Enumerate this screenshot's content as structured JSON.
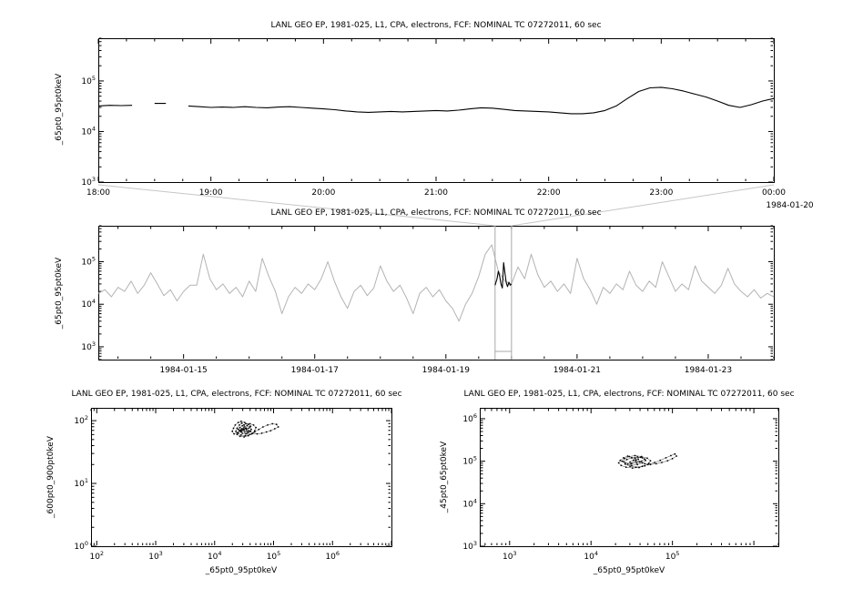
{
  "colors": {
    "background": "#ffffff",
    "foreground": "#000000",
    "series": "#000000",
    "context_line": "#b3b3b3",
    "highlight": "#000000",
    "selection": "#a8a8a8",
    "connector": "#c6c6c6"
  },
  "chart_data": [
    {
      "id": "top-timeseries",
      "type": "line",
      "title": "LANL GEO EP, 1981-025, L1, CPA, electrons, FCF: NOMINAL TC 07272011, 60 sec",
      "ylabel": "_65pt0_95pt0keV",
      "xlabel": "",
      "x_axis_date_label": "1984-01-20",
      "xscale": "time",
      "yscale": "log",
      "xlim_hours": [
        18,
        24
      ],
      "x_tick_hours": [
        18,
        19,
        20,
        21,
        22,
        23,
        24
      ],
      "x_tick_labels": [
        "18:00",
        "19:00",
        "20:00",
        "21:00",
        "22:00",
        "23:00",
        "00:00"
      ],
      "x_minor_step_hours": 0.25,
      "y_tick_exponents": [
        3,
        4,
        5
      ],
      "ylim": [
        1000,
        700000
      ],
      "grid": false,
      "x_start_hour": 18.0,
      "x_step_hour": 0.1,
      "values": [
        32000,
        33000,
        32500,
        33000,
        null,
        36000,
        36000,
        null,
        32000,
        31000,
        30000,
        30500,
        30000,
        31000,
        30000,
        29500,
        30500,
        31000,
        30000,
        29000,
        28000,
        27000,
        25500,
        24500,
        24000,
        24500,
        25000,
        24500,
        25000,
        25500,
        26000,
        25500,
        26500,
        28000,
        29500,
        29000,
        27500,
        26000,
        25500,
        25000,
        24500,
        23500,
        22500,
        22500,
        23500,
        26000,
        32000,
        45000,
        62000,
        73000,
        75000,
        70000,
        63000,
        55000,
        48000,
        40000,
        33000,
        30000,
        34000,
        40000,
        45000
      ]
    },
    {
      "id": "context-timeseries",
      "type": "line",
      "role": "context-overview",
      "title": "LANL GEO EP, 1981-025, L1, CPA, electrons, FCF: NOMINAL TC 07272011, 60 sec",
      "ylabel": "_65pt0_95pt0keV",
      "xlabel": "",
      "xscale": "time",
      "yscale": "log",
      "xlim_days": [
        13.7,
        24.0
      ],
      "x_tick_days": [
        15,
        17,
        19,
        21,
        23
      ],
      "x_tick_labels": [
        "1984-01-15",
        "1984-01-17",
        "1984-01-19",
        "1984-01-21",
        "1984-01-23"
      ],
      "x_minor_step_days": 0.5,
      "y_tick_exponents": [
        3,
        4,
        5
      ],
      "ylim": [
        500,
        700000
      ],
      "grid": false,
      "x_start_day": 13.7,
      "x_step_day": 0.1,
      "values": [
        18000,
        22000,
        15000,
        25000,
        20000,
        35000,
        18000,
        28000,
        55000,
        30000,
        16000,
        22000,
        12000,
        20000,
        28000,
        28000,
        150000,
        40000,
        22000,
        30000,
        18000,
        25000,
        15000,
        35000,
        20000,
        120000,
        45000,
        20000,
        6000,
        15000,
        25000,
        18000,
        30000,
        22000,
        40000,
        100000,
        35000,
        15000,
        8000,
        20000,
        28000,
        16000,
        24000,
        80000,
        35000,
        20000,
        28000,
        14000,
        6000,
        18000,
        25000,
        15000,
        22000,
        12000,
        8000,
        4000,
        10000,
        18000,
        45000,
        150000,
        250000,
        60000,
        35000,
        30000,
        75000,
        40000,
        150000,
        50000,
        25000,
        35000,
        20000,
        30000,
        18000,
        120000,
        40000,
        22000,
        10000,
        25000,
        18000,
        30000,
        22000,
        60000,
        28000,
        20000,
        35000,
        25000,
        100000,
        45000,
        20000,
        30000,
        22000,
        80000,
        35000,
        25000,
        18000,
        28000,
        70000,
        30000,
        20000,
        15000,
        22000,
        14000,
        18000,
        15000
      ],
      "highlight": {
        "x_days": [
          19.75,
          19.78,
          19.8,
          19.82,
          19.84,
          19.86,
          19.88,
          19.9,
          19.92,
          19.94,
          19.96,
          19.98,
          20.0
        ],
        "values": [
          28000,
          40000,
          60000,
          45000,
          30000,
          24000,
          95000,
          55000,
          32000,
          26000,
          33000,
          28000,
          30000
        ]
      },
      "selection_days": [
        19.75,
        20.0
      ]
    },
    {
      "id": "scatter-600-900",
      "type": "scatter",
      "title": "LANL GEO EP, 1981-025, L1, CPA, electrons, FCF: NOMINAL TC 07272011, 60 sec",
      "xlabel": "_65pt0_95pt0keV",
      "ylabel": "_600pt0_900pt0keV",
      "xscale": "log",
      "yscale": "log",
      "xlim": [
        80,
        10000000
      ],
      "ylim": [
        1,
        160
      ],
      "x_tick_exponents": [
        2,
        3,
        4,
        5,
        6
      ],
      "y_tick_exponents": [
        0,
        1,
        2
      ],
      "grid": false,
      "points_log10": [
        [
          4.45,
          1.82
        ],
        [
          4.5,
          1.85
        ],
        [
          4.55,
          1.83
        ],
        [
          4.52,
          1.88
        ],
        [
          4.48,
          1.86
        ],
        [
          4.44,
          1.83
        ],
        [
          4.47,
          1.8
        ],
        [
          4.53,
          1.79
        ],
        [
          4.58,
          1.82
        ],
        [
          4.62,
          1.86
        ],
        [
          4.6,
          1.9
        ],
        [
          4.55,
          1.92
        ],
        [
          4.5,
          1.9
        ],
        [
          4.46,
          1.87
        ],
        [
          4.42,
          1.84
        ],
        [
          4.4,
          1.8
        ],
        [
          4.45,
          1.77
        ],
        [
          4.52,
          1.76
        ],
        [
          4.6,
          1.78
        ],
        [
          4.68,
          1.82
        ],
        [
          4.75,
          1.86
        ],
        [
          4.82,
          1.9
        ],
        [
          4.9,
          1.93
        ],
        [
          4.98,
          1.95
        ],
        [
          5.05,
          1.94
        ],
        [
          5.08,
          1.9
        ],
        [
          5.02,
          1.87
        ],
        [
          4.95,
          1.84
        ],
        [
          4.88,
          1.82
        ],
        [
          4.8,
          1.8
        ],
        [
          4.72,
          1.79
        ],
        [
          4.65,
          1.8
        ],
        [
          4.58,
          1.84
        ],
        [
          4.54,
          1.88
        ],
        [
          4.5,
          1.93
        ],
        [
          4.46,
          1.96
        ],
        [
          4.42,
          1.93
        ],
        [
          4.38,
          1.88
        ],
        [
          4.36,
          1.83
        ],
        [
          4.38,
          1.78
        ],
        [
          4.43,
          1.75
        ],
        [
          4.5,
          1.74
        ],
        [
          4.57,
          1.76
        ],
        [
          4.63,
          1.79
        ],
        [
          4.68,
          1.84
        ],
        [
          4.7,
          1.89
        ],
        [
          4.66,
          1.93
        ],
        [
          4.6,
          1.95
        ],
        [
          4.53,
          1.95
        ],
        [
          4.47,
          1.92
        ],
        [
          4.43,
          1.89
        ],
        [
          4.4,
          1.86
        ],
        [
          4.44,
          1.85
        ],
        [
          4.49,
          1.87
        ],
        [
          4.54,
          1.86
        ],
        [
          4.58,
          1.88
        ],
        [
          4.61,
          1.91
        ],
        [
          4.57,
          1.94
        ],
        [
          4.51,
          1.97
        ],
        [
          4.45,
          1.99
        ],
        [
          4.4,
          1.97
        ],
        [
          4.35,
          1.93
        ],
        [
          4.32,
          1.88
        ],
        [
          4.3,
          1.83
        ],
        [
          4.33,
          1.79
        ],
        [
          4.39,
          1.81
        ],
        [
          4.46,
          1.84
        ],
        [
          4.51,
          1.82
        ],
        [
          4.56,
          1.8
        ],
        [
          4.61,
          1.83
        ]
      ]
    },
    {
      "id": "scatter-45-65",
      "type": "scatter",
      "title": "LANL GEO EP, 1981-025, L1, CPA, electrons, FCF: NOMINAL TC 07272011, 60 sec",
      "xlabel": "_65pt0_95pt0keV",
      "ylabel": "_45pt0_65pt0keV",
      "xscale": "log",
      "yscale": "log",
      "xlim": [
        430,
        2000000
      ],
      "ylim": [
        1000,
        1800000
      ],
      "x_tick_exponents": [
        3,
        4,
        5
      ],
      "y_tick_exponents": [
        3,
        4,
        5,
        6
      ],
      "grid": false,
      "points_log10": [
        [
          4.5,
          4.95
        ],
        [
          4.55,
          5.0
        ],
        [
          4.6,
          4.98
        ],
        [
          4.58,
          5.05
        ],
        [
          4.52,
          5.02
        ],
        [
          4.48,
          4.98
        ],
        [
          4.45,
          4.93
        ],
        [
          4.5,
          4.9
        ],
        [
          4.57,
          4.92
        ],
        [
          4.63,
          4.96
        ],
        [
          4.67,
          5.02
        ],
        [
          4.63,
          5.08
        ],
        [
          4.57,
          5.1
        ],
        [
          4.5,
          5.08
        ],
        [
          4.44,
          5.04
        ],
        [
          4.4,
          4.99
        ],
        [
          4.42,
          4.93
        ],
        [
          4.48,
          4.88
        ],
        [
          4.55,
          4.86
        ],
        [
          4.63,
          4.88
        ],
        [
          4.7,
          4.92
        ],
        [
          4.78,
          4.97
        ],
        [
          4.85,
          5.02
        ],
        [
          4.92,
          5.08
        ],
        [
          4.98,
          5.13
        ],
        [
          5.03,
          5.17
        ],
        [
          5.05,
          5.12
        ],
        [
          5.0,
          5.06
        ],
        [
          4.94,
          5.01
        ],
        [
          4.87,
          4.97
        ],
        [
          4.8,
          4.94
        ],
        [
          4.73,
          4.92
        ],
        [
          4.66,
          4.94
        ],
        [
          4.6,
          4.98
        ],
        [
          4.55,
          5.03
        ],
        [
          4.5,
          5.08
        ],
        [
          4.45,
          5.12
        ],
        [
          4.4,
          5.08
        ],
        [
          4.36,
          5.02
        ],
        [
          4.34,
          4.96
        ],
        [
          4.37,
          4.9
        ],
        [
          4.43,
          4.86
        ],
        [
          4.51,
          4.84
        ],
        [
          4.59,
          4.85
        ],
        [
          4.66,
          4.89
        ],
        [
          4.71,
          4.95
        ],
        [
          4.73,
          5.01
        ],
        [
          4.69,
          5.07
        ],
        [
          4.62,
          5.11
        ],
        [
          4.54,
          5.13
        ],
        [
          4.47,
          5.11
        ],
        [
          4.41,
          5.06
        ],
        [
          4.38,
          5.0
        ],
        [
          4.42,
          4.96
        ],
        [
          4.49,
          4.94
        ],
        [
          4.56,
          4.96
        ],
        [
          4.62,
          5.0
        ],
        [
          4.66,
          5.05
        ],
        [
          4.61,
          5.09
        ],
        [
          4.54,
          5.07
        ]
      ]
    }
  ]
}
